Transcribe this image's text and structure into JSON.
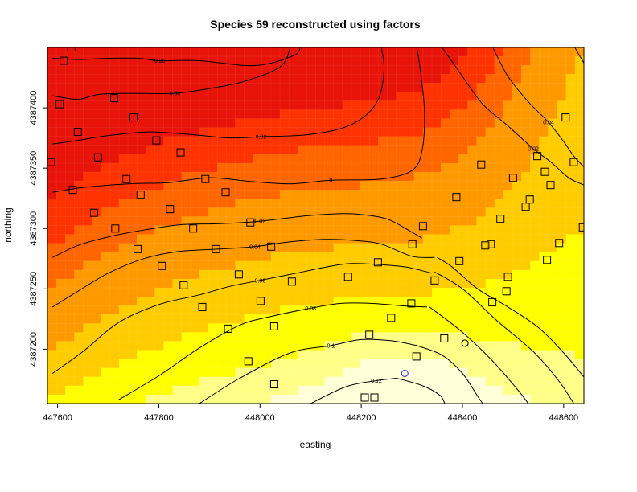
{
  "chart_data": {
    "type": "heatmap",
    "title": "Species 59 reconstructed using factors",
    "xlabel": "easting",
    "ylabel": "northing",
    "xlim": [
      447580,
      448640
    ],
    "ylim": [
      4387155,
      4387450
    ],
    "x_ticks": [
      447600,
      447800,
      448000,
      448200,
      448400,
      448600
    ],
    "y_ticks": [
      4387200,
      4387250,
      4387300,
      4387350,
      4387400
    ],
    "x_tick_labels": [
      "447600",
      "447800",
      "448000",
      "448200",
      "448400",
      "448600"
    ],
    "y_tick_labels": [
      "4387200",
      "4387250",
      "4387300",
      "4387350",
      "4387400"
    ],
    "color_scale": [
      "#e8140a",
      "#ff3300",
      "#ff6600",
      "#ff9900",
      "#ffcc00",
      "#ffff00",
      "#ffff88",
      "#ffffd8"
    ],
    "contours": [
      {
        "level": -0.06,
        "label": "-0.06",
        "points": [
          [
            447590,
            4387441
          ],
          [
            447640,
            4387440
          ],
          [
            447700,
            4387441
          ],
          [
            447760,
            4387441
          ],
          [
            447800,
            4387439
          ],
          [
            447880,
            4387439
          ],
          [
            447990,
            4387435
          ],
          [
            448065,
            4387443
          ],
          [
            448080,
            4387450
          ]
        ]
      },
      {
        "level": -0.04,
        "label": "-0.04",
        "points": [
          [
            447590,
            4387410
          ],
          [
            447640,
            4387407
          ],
          [
            447680,
            4387411
          ],
          [
            447740,
            4387412
          ],
          [
            447830,
            4387412
          ],
          [
            447900,
            4387416
          ],
          [
            447970,
            4387422
          ],
          [
            448040,
            4387434
          ],
          [
            448060,
            4387450
          ]
        ]
      },
      {
        "level": -0.02,
        "label": "-0.02",
        "points": [
          [
            447590,
            4387370
          ],
          [
            447640,
            4387373
          ],
          [
            447700,
            4387377
          ],
          [
            447780,
            4387380
          ],
          [
            447860,
            4387378
          ],
          [
            447940,
            4387375
          ],
          [
            448000,
            4387376
          ],
          [
            448100,
            4387378
          ],
          [
            448180,
            4387386
          ],
          [
            448230,
            4387404
          ],
          [
            448245,
            4387430
          ],
          [
            448240,
            4387450
          ]
        ]
      },
      {
        "level": 0,
        "label": "0",
        "points": [
          [
            447590,
            4387330
          ],
          [
            447650,
            4387334
          ],
          [
            447740,
            4387337
          ],
          [
            447820,
            4387338
          ],
          [
            447900,
            4387342
          ],
          [
            447980,
            4387339
          ],
          [
            448060,
            4387337
          ],
          [
            448140,
            4387340
          ],
          [
            448240,
            4387341
          ],
          [
            448300,
            4387348
          ],
          [
            448320,
            4387364
          ],
          [
            448325,
            4387396
          ],
          [
            448318,
            4387427
          ],
          [
            448310,
            4387450
          ]
        ]
      },
      {
        "level": 0.02,
        "label": "0.02",
        "points": [
          [
            447590,
            4387276
          ],
          [
            447640,
            4387286
          ],
          [
            447700,
            4387293
          ],
          [
            447760,
            4387298
          ],
          [
            447840,
            4387303
          ],
          [
            447920,
            4387304
          ],
          [
            448000,
            4387306
          ],
          [
            448080,
            4387310
          ],
          [
            448140,
            4387312
          ],
          [
            448190,
            4387312
          ],
          [
            448250,
            4387308
          ],
          [
            448300,
            4387297
          ],
          [
            448320,
            4387292
          ]
        ]
      },
      {
        "level": 0.04,
        "label": "0.04",
        "points": [
          [
            447590,
            4387235
          ],
          [
            447640,
            4387248
          ],
          [
            447700,
            4387263
          ],
          [
            447770,
            4387275
          ],
          [
            447840,
            4387281
          ],
          [
            447920,
            4387283
          ],
          [
            447990,
            4387285
          ],
          [
            448060,
            4387289
          ],
          [
            448130,
            4387291
          ],
          [
            448190,
            4387290
          ],
          [
            448240,
            4387287
          ],
          [
            448300,
            4387277
          ],
          [
            448345,
            4387276
          ]
        ]
      },
      {
        "level": 0.06,
        "label": "0.06",
        "points": [
          [
            447590,
            4387180
          ],
          [
            447650,
            4387198
          ],
          [
            447720,
            4387222
          ],
          [
            447800,
            4387237
          ],
          [
            447880,
            4387245
          ],
          [
            447940,
            4387252
          ],
          [
            448000,
            4387257
          ],
          [
            448060,
            4387262
          ],
          [
            448130,
            4387268
          ],
          [
            448180,
            4387271
          ],
          [
            448240,
            4387270
          ],
          [
            448290,
            4387268
          ],
          [
            448340,
            4387263
          ]
        ]
      },
      {
        "level": 0.08,
        "label": "0.08",
        "points": [
          [
            447720,
            4387158
          ],
          [
            447800,
            4387178
          ],
          [
            447880,
            4387201
          ],
          [
            447960,
            4387220
          ],
          [
            448020,
            4387227
          ],
          [
            448100,
            4387234
          ],
          [
            448160,
            4387238
          ],
          [
            448220,
            4387238
          ],
          [
            448280,
            4387236
          ],
          [
            448330,
            4387235
          ]
        ]
      },
      {
        "level": 0.1,
        "label": "0.1",
        "points": [
          [
            447880,
            4387155
          ],
          [
            447960,
            4387176
          ],
          [
            448060,
            4387197
          ],
          [
            448140,
            4387203
          ],
          [
            448200,
            4387208
          ],
          [
            448260,
            4387207
          ],
          [
            448310,
            4387203
          ]
        ]
      },
      {
        "level": 0.12,
        "label": "0.12",
        "points": [
          [
            448100,
            4387155
          ],
          [
            448170,
            4387169
          ],
          [
            448230,
            4387174
          ],
          [
            448270,
            4387176
          ]
        ]
      },
      {
        "level": 0.04,
        "label": "0.04",
        "points": [
          [
            448460,
            4387450
          ],
          [
            448490,
            4387426
          ],
          [
            448530,
            4387405
          ],
          [
            448570,
            4387388
          ],
          [
            448600,
            4387372
          ],
          [
            448620,
            4387360
          ],
          [
            448640,
            4387351
          ]
        ]
      },
      {
        "level": 0.02,
        "label": "0.02",
        "points": [
          [
            448360,
            4387450
          ],
          [
            448400,
            4387426
          ],
          [
            448440,
            4387403
          ],
          [
            448490,
            4387385
          ],
          [
            448540,
            4387366
          ],
          [
            448575,
            4387355
          ],
          [
            448610,
            4387342
          ],
          [
            448640,
            4387336
          ]
        ]
      },
      {
        "level": 0.06,
        "label": "",
        "points": [
          [
            448622,
            4387450
          ],
          [
            448640,
            4387437
          ]
        ]
      },
      {
        "level": 0.04,
        "label": "",
        "points": [
          [
            448350,
            4387276
          ],
          [
            448380,
            4387268
          ],
          [
            448430,
            4387250
          ],
          [
            448490,
            4387235
          ],
          [
            448550,
            4387218
          ],
          [
            448600,
            4387197
          ],
          [
            448640,
            4387177
          ]
        ]
      },
      {
        "level": 0.06,
        "label": "",
        "points": [
          [
            448345,
            4387264
          ],
          [
            448400,
            4387250
          ],
          [
            448470,
            4387223
          ],
          [
            448540,
            4387198
          ],
          [
            448590,
            4387174
          ],
          [
            448620,
            4387155
          ]
        ]
      },
      {
        "level": 0.08,
        "label": "",
        "points": [
          [
            448335,
            4387235
          ],
          [
            448400,
            4387214
          ],
          [
            448460,
            4387190
          ],
          [
            448510,
            4387166
          ],
          [
            448530,
            4387155
          ]
        ]
      },
      {
        "level": 0.1,
        "label": "",
        "points": [
          [
            448310,
            4387203
          ],
          [
            448360,
            4387195
          ],
          [
            448400,
            4387180
          ],
          [
            448430,
            4387161
          ],
          [
            448440,
            4387155
          ]
        ]
      },
      {
        "level": 0.12,
        "label": "",
        "points": [
          [
            448270,
            4387176
          ],
          [
            448320,
            4387170
          ],
          [
            448355,
            4387162
          ],
          [
            448365,
            4387155
          ]
        ]
      }
    ],
    "sites": [
      [
        447627,
        4387450
      ],
      [
        447612,
        4387439
      ],
      [
        447604,
        4387403
      ],
      [
        447712,
        4387408
      ],
      [
        447640,
        4387380
      ],
      [
        447750,
        4387392
      ],
      [
        447795,
        4387373
      ],
      [
        447843,
        4387363
      ],
      [
        447680,
        4387359
      ],
      [
        447587,
        4387355
      ],
      [
        447736,
        4387341
      ],
      [
        447630,
        4387332
      ],
      [
        447892,
        4387341
      ],
      [
        447932,
        4387330
      ],
      [
        447764,
        4387328
      ],
      [
        447822,
        4387316
      ],
      [
        447672,
        4387313
      ],
      [
        447981,
        4387305
      ],
      [
        447868,
        4387300
      ],
      [
        447714,
        4387300
      ],
      [
        447758,
        4387283
      ],
      [
        447806,
        4387269
      ],
      [
        447913,
        4387283
      ],
      [
        448022,
        4387285
      ],
      [
        447958,
        4387262
      ],
      [
        448063,
        4387256
      ],
      [
        447849,
        4387253
      ],
      [
        448001,
        4387240
      ],
      [
        447886,
        4387235
      ],
      [
        447937,
        4387217
      ],
      [
        447977,
        4387190
      ],
      [
        448028,
        4387219
      ],
      [
        448028,
        4387171
      ],
      [
        448174,
        4387260
      ],
      [
        448233,
        4387272
      ],
      [
        448216,
        4387212
      ],
      [
        448259,
        4387226
      ],
      [
        448301,
        4387287
      ],
      [
        448322,
        4387302
      ],
      [
        448345,
        4387257
      ],
      [
        448299,
        4387238
      ],
      [
        448364,
        4387209
      ],
      [
        448309,
        4387194
      ],
      [
        448388,
        4387326
      ],
      [
        448394,
        4387273
      ],
      [
        448445,
        4387286
      ],
      [
        448459,
        4387239
      ],
      [
        448490,
        4387260
      ],
      [
        448475,
        4387308
      ],
      [
        448500,
        4387342
      ],
      [
        448548,
        4387360
      ],
      [
        448563,
        4387347
      ],
      [
        448533,
        4387324
      ],
      [
        448574,
        4387336
      ],
      [
        448604,
        4387392
      ],
      [
        448620,
        4387355
      ],
      [
        448591,
        4387288
      ],
      [
        448638,
        4387301
      ],
      [
        448567,
        4387274
      ],
      [
        448456,
        4387287
      ],
      [
        448437,
        4387353
      ],
      [
        448525,
        4387318
      ],
      [
        448487,
        4387248
      ],
      [
        448207,
        4387160
      ],
      [
        448226,
        4387160
      ]
    ],
    "special_points": [
      {
        "x": 448286,
        "y": 4387180,
        "marker": "circle",
        "color": "#2222ff"
      },
      {
        "x": 448405,
        "y": 4387205,
        "marker": "circle",
        "color": "#000000"
      }
    ]
  }
}
